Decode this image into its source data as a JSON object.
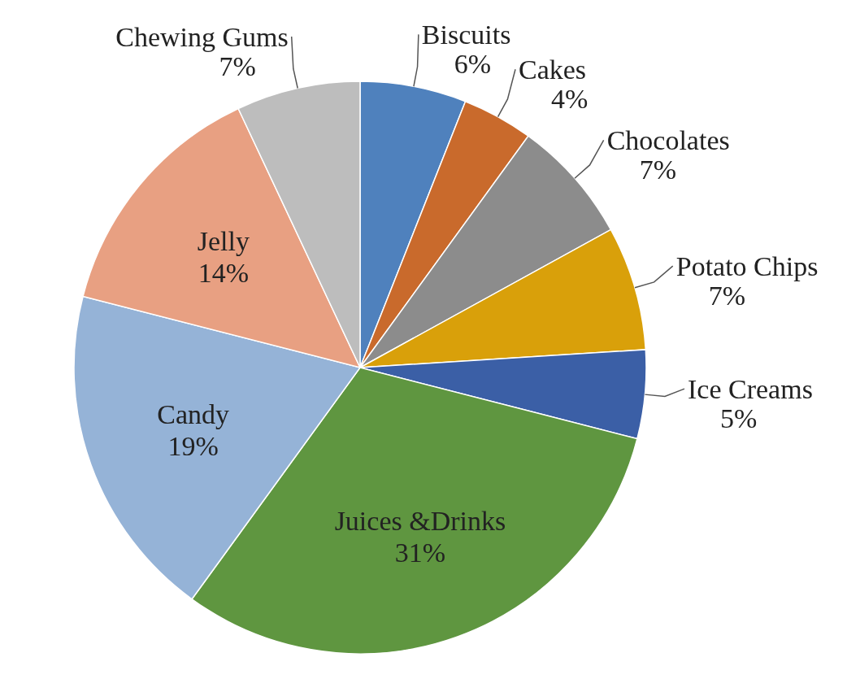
{
  "chart_data": {
    "type": "pie",
    "categories": [
      "Biscuits",
      "Cakes",
      "Chocolates",
      "Potato Chips",
      "Ice Creams",
      "Juices &Drinks",
      "Candy",
      "Jelly",
      "Chewing Gums"
    ],
    "values": [
      6,
      4,
      7,
      7,
      5,
      31,
      19,
      14,
      7
    ],
    "colors": [
      "#4f81bd",
      "#c96a2c",
      "#8c8c8c",
      "#d9a00a",
      "#3b5fa6",
      "#5f9640",
      "#95b3d7",
      "#e8a082",
      "#bdbdbd"
    ],
    "value_labels": [
      "6%",
      "4%",
      "7%",
      "7%",
      "5%",
      "31%",
      "19%",
      "14%",
      "7%"
    ],
    "legend": false
  }
}
